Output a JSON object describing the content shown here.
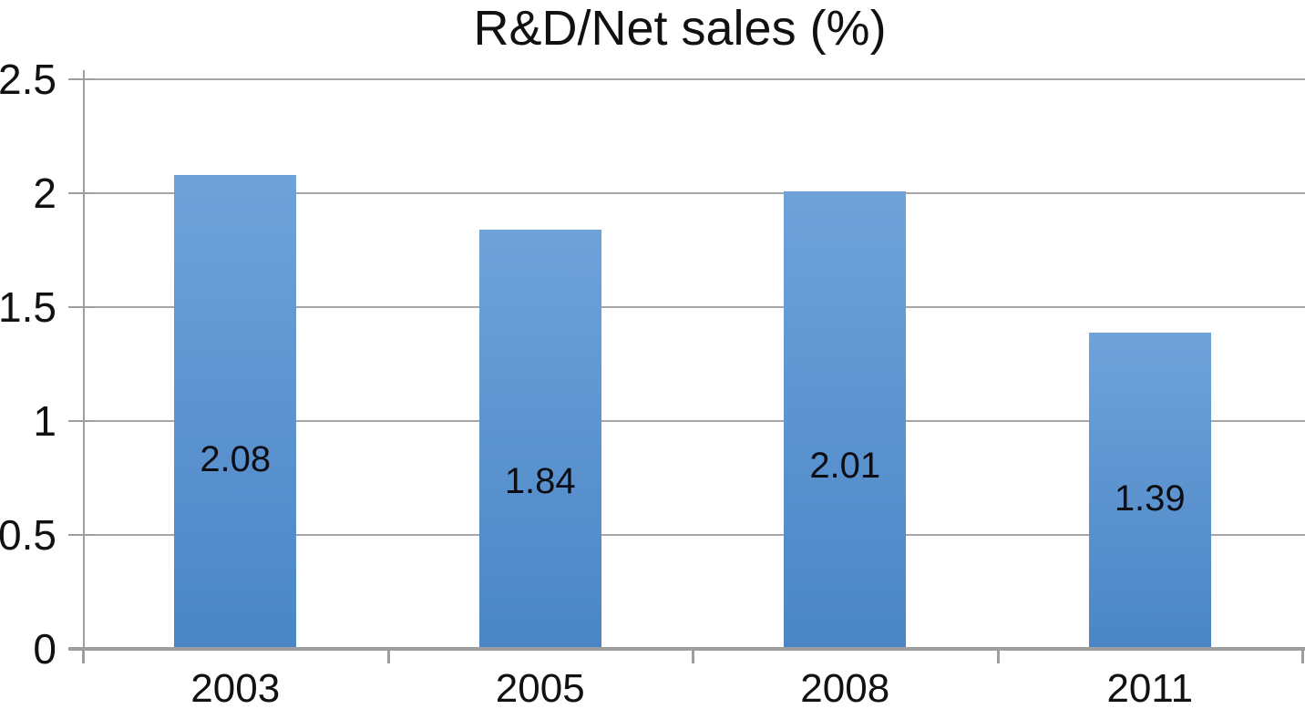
{
  "chart_data": {
    "type": "bar",
    "title": "R&D/Net sales (%)",
    "categories": [
      "2003",
      "2005",
      "2008",
      "2011"
    ],
    "values": [
      2.08,
      1.84,
      2.01,
      1.39
    ],
    "data_labels": [
      "2.08",
      "1.84",
      "2.01",
      "1.39"
    ],
    "xlabel": "",
    "ylabel": "",
    "ylim": [
      0,
      2.5
    ],
    "yticks": [
      0,
      0.5,
      1,
      1.5,
      2,
      2.5
    ],
    "ytick_labels": [
      "0",
      "0.5",
      "1",
      "1.5",
      "2",
      "2.5"
    ],
    "grid": "horizontal-only",
    "legend_position": "none",
    "data_label_position": "inside-bar",
    "colors": {
      "bar_gradient_top": "#6fa2d9",
      "bar_gradient_bottom": "#4a86c7",
      "gridline": "#a6a6a6",
      "axis": "#9e9e9e",
      "text": "#111111",
      "background": "#ffffff"
    }
  }
}
